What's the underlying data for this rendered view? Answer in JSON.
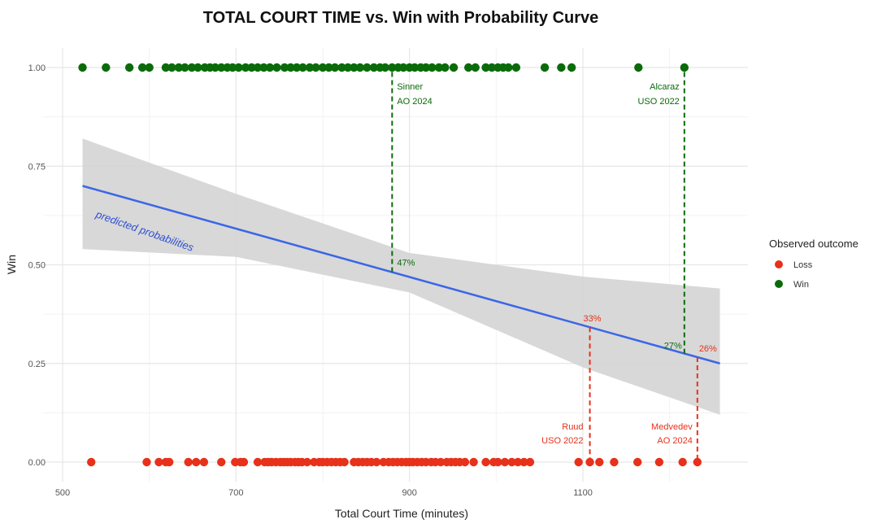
{
  "chart_data": {
    "type": "scatter",
    "title": "TOTAL COURT TIME vs. Win with Probability Curve",
    "xlabel": "Total Court Time (minutes)",
    "ylabel": "Win",
    "xlim": [
      478,
      1290
    ],
    "ylim": [
      -0.05,
      1.05
    ],
    "x_ticks": [
      500,
      700,
      900,
      1100
    ],
    "x_tick_labels": [
      "500",
      "700",
      "900",
      "1100"
    ],
    "y_ticks": [
      0,
      0.25,
      0.5,
      0.75,
      1.0
    ],
    "y_tick_labels": [
      "0.00",
      "0.25",
      "0.50",
      "0.75",
      "1.00"
    ],
    "grid": true,
    "legend": {
      "title": "Observed outcome",
      "placement": "right",
      "entries": [
        {
          "label": "Loss",
          "color": "#e8311a"
        },
        {
          "label": "Win",
          "color": "#0b6b0b"
        }
      ]
    },
    "series": [
      {
        "name": "Win",
        "color": "#0b6b0b",
        "y": 1,
        "x": [
          523,
          550,
          577,
          592,
          600,
          619,
          626,
          634,
          641,
          649,
          656,
          664,
          670,
          676,
          683,
          690,
          696,
          703,
          711,
          718,
          725,
          732,
          739,
          747,
          756,
          763,
          770,
          777,
          785,
          792,
          800,
          807,
          814,
          822,
          829,
          836,
          843,
          851,
          859,
          866,
          872,
          880,
          887,
          893,
          900,
          906,
          913,
          919,
          926,
          934,
          941,
          951,
          968,
          976,
          988,
          995,
          1002,
          1008,
          1014,
          1023,
          1056,
          1075,
          1087,
          1164,
          1217
        ]
      },
      {
        "name": "Loss",
        "color": "#e8311a",
        "y": 0,
        "x": [
          533,
          597,
          611,
          619,
          623,
          645,
          654,
          663,
          683,
          699,
          705,
          709,
          725,
          733,
          737,
          741,
          746,
          751,
          755,
          759,
          763,
          768,
          772,
          776,
          782,
          790,
          796,
          800,
          805,
          810,
          815,
          820,
          825,
          836,
          841,
          846,
          851,
          856,
          862,
          870,
          876,
          881,
          886,
          891,
          896,
          900,
          904,
          909,
          914,
          919,
          925,
          930,
          936,
          943,
          948,
          953,
          958,
          964,
          974,
          988,
          997,
          1002,
          1010,
          1018,
          1025,
          1032,
          1039,
          1095,
          1108,
          1119,
          1136,
          1163,
          1188,
          1215,
          1232
        ]
      }
    ],
    "probability_curve": {
      "label": "predicted probabilities",
      "color": "#3b66e6",
      "x": [
        523,
        1258
      ],
      "y": [
        0.7,
        0.25
      ],
      "ci_band": {
        "x": [
          523,
          700,
          900,
          1100,
          1258
        ],
        "upper": [
          0.82,
          0.68,
          0.53,
          0.47,
          0.44
        ],
        "lower": [
          0.54,
          0.52,
          0.43,
          0.24,
          0.12
        ]
      }
    },
    "annotations": [
      {
        "player": "Sinner",
        "event": "AO 2024",
        "x": 880,
        "prob": 0.47,
        "prob_label": "47%",
        "outcome": "Win",
        "color": "#0b6b0b"
      },
      {
        "player": "Alcaraz",
        "event": "USO 2022",
        "x": 1217,
        "prob": 0.27,
        "prob_label": "27%",
        "outcome": "Win",
        "color": "#0b6b0b"
      },
      {
        "player": "Ruud",
        "event": "USO 2022",
        "x": 1108,
        "prob": 0.33,
        "prob_label": "33%",
        "outcome": "Loss",
        "color": "#e8311a"
      },
      {
        "player": "Medvedev",
        "event": "AO 2024",
        "x": 1232,
        "prob": 0.26,
        "prob_label": "26%",
        "outcome": "Loss",
        "color": "#e8311a"
      }
    ]
  }
}
